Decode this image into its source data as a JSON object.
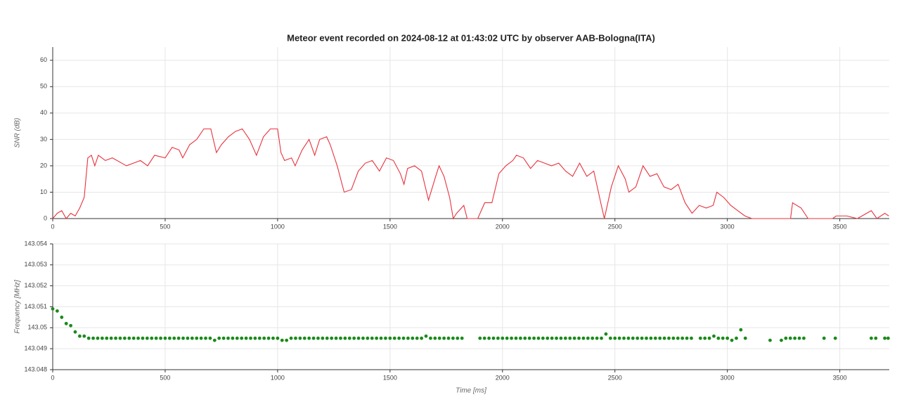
{
  "chart_data": [
    {
      "type": "line",
      "title": "Meteor event recorded on 2024-08-12 at 01:43:02 UTC by observer AAB-Bologna(ITA)",
      "ylabel": "SNR (dB)",
      "color": "#e8323c",
      "x": [
        0,
        20,
        40,
        60,
        80,
        100,
        120,
        140,
        156,
        172,
        187,
        203,
        234,
        265,
        328,
        390,
        422,
        453,
        500,
        531,
        562,
        578,
        609,
        640,
        656,
        672,
        703,
        728,
        750,
        781,
        812,
        843,
        875,
        906,
        937,
        968,
        1000,
        1015,
        1031,
        1062,
        1078,
        1109,
        1140,
        1165,
        1187,
        1218,
        1234,
        1265,
        1296,
        1328,
        1359,
        1390,
        1421,
        1453,
        1484,
        1515,
        1546,
        1562,
        1578,
        1609,
        1640,
        1671,
        1703,
        1718,
        1740,
        1765,
        1781,
        1796,
        1828,
        1843,
        1890,
        1921,
        1953,
        1984,
        2015,
        2046,
        2062,
        2093,
        2125,
        2156,
        2187,
        2218,
        2250,
        2281,
        2312,
        2343,
        2375,
        2406,
        2437,
        2453,
        2484,
        2515,
        2546,
        2562,
        2593,
        2625,
        2656,
        2687,
        2718,
        2750,
        2781,
        2812,
        2843,
        2875,
        2906,
        2937,
        2953,
        2984,
        3015,
        3046,
        3078,
        3109,
        3281,
        3290,
        3328,
        3359,
        3468,
        3484,
        3531,
        3578,
        3640,
        3665,
        3700,
        3718
      ],
      "values": [
        0,
        2,
        3,
        0,
        2,
        1,
        4,
        8,
        23,
        24,
        20,
        24,
        22,
        23,
        20,
        22,
        20,
        24,
        23,
        27,
        26,
        23,
        28,
        30,
        32,
        34,
        34,
        25,
        28,
        31,
        33,
        34,
        30,
        24,
        31,
        34,
        34,
        25,
        22,
        23,
        20,
        26,
        30,
        24,
        30,
        31,
        28,
        20,
        10,
        11,
        18,
        21,
        22,
        18,
        23,
        22,
        17,
        13,
        19,
        20,
        18,
        7,
        16,
        20,
        16,
        8,
        0,
        2,
        5,
        0,
        0,
        6,
        6,
        17,
        20,
        22,
        24,
        23,
        19,
        22,
        21,
        20,
        21,
        18,
        16,
        21,
        16,
        18,
        6,
        0,
        12,
        20,
        15,
        10,
        12,
        20,
        16,
        17,
        12,
        11,
        13,
        6,
        2,
        5,
        4,
        5,
        10,
        8,
        5,
        3,
        1,
        0,
        0,
        6,
        4,
        0,
        0,
        1,
        1,
        0,
        3,
        0,
        2,
        1
      ],
      "xlim": [
        0,
        3720
      ],
      "xticks": [
        0,
        500,
        1000,
        1500,
        2000,
        2500,
        3000,
        3500
      ],
      "ylim": [
        0,
        65
      ],
      "yticks": [
        0,
        10,
        20,
        30,
        40,
        50,
        60
      ],
      "grid": true
    },
    {
      "type": "scatter",
      "ylabel": "Frequency [MHz]",
      "xlabel": "Time [ms]",
      "color": "#1a8a1a",
      "x": [
        0,
        20,
        40,
        60,
        80,
        100,
        120,
        140,
        160,
        180,
        200,
        220,
        240,
        260,
        280,
        300,
        320,
        340,
        360,
        380,
        400,
        420,
        440,
        460,
        480,
        500,
        520,
        540,
        560,
        580,
        600,
        620,
        640,
        660,
        680,
        700,
        720,
        740,
        760,
        780,
        800,
        820,
        840,
        860,
        880,
        900,
        920,
        940,
        960,
        980,
        1000,
        1020,
        1040,
        1060,
        1080,
        1100,
        1120,
        1140,
        1160,
        1180,
        1200,
        1220,
        1240,
        1260,
        1280,
        1300,
        1320,
        1340,
        1360,
        1380,
        1400,
        1420,
        1440,
        1460,
        1480,
        1500,
        1520,
        1540,
        1560,
        1580,
        1600,
        1620,
        1640,
        1660,
        1680,
        1700,
        1720,
        1740,
        1760,
        1780,
        1800,
        1820,
        1900,
        1920,
        1940,
        1960,
        1980,
        2000,
        2020,
        2040,
        2060,
        2080,
        2100,
        2120,
        2140,
        2160,
        2180,
        2200,
        2220,
        2240,
        2260,
        2280,
        2300,
        2320,
        2340,
        2360,
        2380,
        2400,
        2420,
        2440,
        2460,
        2480,
        2500,
        2520,
        2540,
        2560,
        2580,
        2600,
        2620,
        2640,
        2660,
        2680,
        2700,
        2720,
        2740,
        2760,
        2780,
        2800,
        2820,
        2840,
        2880,
        2900,
        2920,
        2940,
        2960,
        2980,
        3000,
        3020,
        3040,
        3060,
        3080,
        3190,
        3240,
        3260,
        3280,
        3300,
        3320,
        3340,
        3430,
        3480,
        3640,
        3660,
        3700,
        3715
      ],
      "values": [
        143.0509,
        143.0508,
        143.0505,
        143.0502,
        143.0501,
        143.0498,
        143.0496,
        143.0496,
        143.0495,
        143.0495,
        143.0495,
        143.0495,
        143.0495,
        143.0495,
        143.0495,
        143.0495,
        143.0495,
        143.0495,
        143.0495,
        143.0495,
        143.0495,
        143.0495,
        143.0495,
        143.0495,
        143.0495,
        143.0495,
        143.0495,
        143.0495,
        143.0495,
        143.0495,
        143.0495,
        143.0495,
        143.0495,
        143.0495,
        143.0495,
        143.0495,
        143.0494,
        143.0495,
        143.0495,
        143.0495,
        143.0495,
        143.0495,
        143.0495,
        143.0495,
        143.0495,
        143.0495,
        143.0495,
        143.0495,
        143.0495,
        143.0495,
        143.0495,
        143.0494,
        143.0494,
        143.0495,
        143.0495,
        143.0495,
        143.0495,
        143.0495,
        143.0495,
        143.0495,
        143.0495,
        143.0495,
        143.0495,
        143.0495,
        143.0495,
        143.0495,
        143.0495,
        143.0495,
        143.0495,
        143.0495,
        143.0495,
        143.0495,
        143.0495,
        143.0495,
        143.0495,
        143.0495,
        143.0495,
        143.0495,
        143.0495,
        143.0495,
        143.0495,
        143.0495,
        143.0495,
        143.0496,
        143.0495,
        143.0495,
        143.0495,
        143.0495,
        143.0495,
        143.0495,
        143.0495,
        143.0495,
        143.0495,
        143.0495,
        143.0495,
        143.0495,
        143.0495,
        143.0495,
        143.0495,
        143.0495,
        143.0495,
        143.0495,
        143.0495,
        143.0495,
        143.0495,
        143.0495,
        143.0495,
        143.0495,
        143.0495,
        143.0495,
        143.0495,
        143.0495,
        143.0495,
        143.0495,
        143.0495,
        143.0495,
        143.0495,
        143.0495,
        143.0495,
        143.0495,
        143.0497,
        143.0495,
        143.0495,
        143.0495,
        143.0495,
        143.0495,
        143.0495,
        143.0495,
        143.0495,
        143.0495,
        143.0495,
        143.0495,
        143.0495,
        143.0495,
        143.0495,
        143.0495,
        143.0495,
        143.0495,
        143.0495,
        143.0495,
        143.0495,
        143.0495,
        143.0495,
        143.0496,
        143.0495,
        143.0495,
        143.0495,
        143.0494,
        143.0495,
        143.0499,
        143.0495,
        143.0494,
        143.0494,
        143.0495,
        143.0495,
        143.0495,
        143.0495,
        143.0495,
        143.0495,
        143.0495,
        143.0495,
        143.0495,
        143.0495,
        143.0495
      ],
      "xlim": [
        0,
        3720
      ],
      "xticks": [
        0,
        500,
        1000,
        1500,
        2000,
        2500,
        3000,
        3500
      ],
      "ylim": [
        143.048,
        143.054
      ],
      "yticks": [
        143.048,
        143.049,
        143.05,
        143.051,
        143.052,
        143.053,
        143.054
      ],
      "grid": true
    }
  ]
}
